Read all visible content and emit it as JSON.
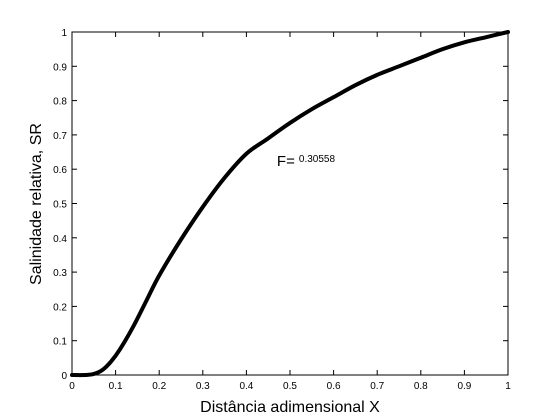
{
  "chart_data": {
    "type": "line",
    "title": "",
    "xlabel": "Distância adimensional X",
    "ylabel": "Salinidade relativa, SR",
    "xlim": [
      0,
      1
    ],
    "ylim": [
      0,
      1
    ],
    "x_ticks": [
      0,
      0.1,
      0.2,
      0.3,
      0.4,
      0.5,
      0.6,
      0.7,
      0.8,
      0.9,
      1
    ],
    "x_tick_labels": [
      "0",
      "0.1",
      "0.2",
      "0.3",
      "0.4",
      "0.5",
      "0.6",
      "0.7",
      "0.8",
      "0.9",
      "1"
    ],
    "y_ticks": [
      0,
      0.1,
      0.2,
      0.3,
      0.4,
      0.5,
      0.6,
      0.7,
      0.8,
      0.9,
      1
    ],
    "y_tick_labels": [
      "0",
      "0.1",
      "0.2",
      "0.3",
      "0.4",
      "0.5",
      "0.6",
      "0.7",
      "0.8",
      "0.9",
      "1"
    ],
    "grid": false,
    "line_color": "#000000",
    "series": [
      {
        "x": [
          0,
          0.03,
          0.05,
          0.07,
          0.09,
          0.11,
          0.14,
          0.17,
          0.2,
          0.25,
          0.3,
          0.35,
          0.4,
          0.45,
          0.5,
          0.55,
          0.6,
          0.65,
          0.7,
          0.75,
          0.8,
          0.85,
          0.9,
          0.95,
          1
        ],
        "y": [
          0,
          0,
          0.003,
          0.015,
          0.04,
          0.075,
          0.14,
          0.215,
          0.29,
          0.395,
          0.49,
          0.575,
          0.645,
          0.69,
          0.735,
          0.775,
          0.81,
          0.845,
          0.875,
          0.9,
          0.925,
          0.95,
          0.97,
          0.985,
          1
        ]
      }
    ],
    "annotation": {
      "main": "F=",
      "sub": "0.30558",
      "x": 0.47,
      "y": 0.61
    }
  }
}
